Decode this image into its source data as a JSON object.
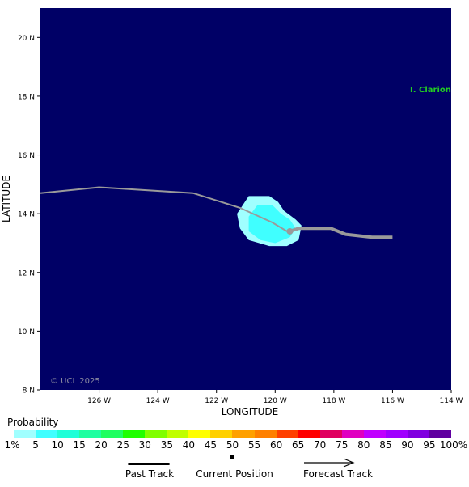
{
  "map": {
    "ylabel": "LATITUDE",
    "xlabel": "LONGITUDE",
    "lat_ticks": [
      "20 N",
      "18 N",
      "16 N",
      "14 N",
      "12 N",
      "10 N",
      "8 N"
    ],
    "lon_ticks": [
      "126 W",
      "124 W",
      "122 W",
      "120 W",
      "118 W",
      "116 W",
      "114 W"
    ],
    "lat_range": [
      8,
      21
    ],
    "lon_range": [
      -128,
      -114
    ],
    "island_label": "I. Clarion",
    "island_color": "#22cc22",
    "watermark": "© UCL 2025",
    "ocean_color": "#000066",
    "past_track": [
      [
        -128,
        14.7
      ],
      [
        -126,
        14.9
      ],
      [
        -122.8,
        14.7
      ],
      [
        -121.2,
        14.2
      ],
      [
        -120.1,
        13.7
      ],
      [
        -119.6,
        13.4
      ]
    ],
    "current_position": [
      -119.5,
      13.4
    ],
    "forecast_track": [
      [
        -119.5,
        13.4
      ],
      [
        -119.2,
        13.5
      ],
      [
        -118.1,
        13.5
      ],
      [
        -117.6,
        13.3
      ],
      [
        -116.7,
        13.2
      ],
      [
        -116,
        13.2
      ]
    ],
    "probability_area_levels": [
      "1%",
      "5%"
    ]
  },
  "legend": {
    "title": "Probability",
    "labels": [
      "1%",
      "5",
      "10",
      "15",
      "20",
      "25",
      "30",
      "35",
      "40",
      "45",
      "50",
      "55",
      "60",
      "65",
      "70",
      "75",
      "80",
      "85",
      "90",
      "95",
      "100%"
    ],
    "colors": [
      "#a0ffff",
      "#40ffff",
      "#20ffd8",
      "#20ffa0",
      "#20ff60",
      "#20ff00",
      "#80ff00",
      "#c0ff00",
      "#ffff00",
      "#ffd000",
      "#ffa000",
      "#ff8000",
      "#ff4000",
      "#ff0000",
      "#e00060",
      "#e000c0",
      "#c000ff",
      "#a000ff",
      "#8000e0",
      "#6000a0"
    ],
    "past_track_label": "Past Track",
    "current_position_label": "Current Position",
    "forecast_track_label": "Forecast Track"
  }
}
